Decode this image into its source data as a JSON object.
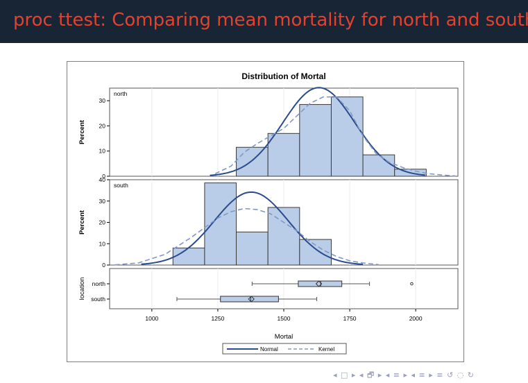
{
  "slide": {
    "title": "proc ttest: Comparing mean mortality for north and south"
  },
  "colors": {
    "title_bar": "#172535",
    "title_text": "#e8402c",
    "bar_fill": "#b9cde8",
    "normal_curve": "#2a4b8d",
    "kernel_curve": "#7f98c8"
  },
  "chart_data": {
    "type": "bar",
    "title": "Distribution of Mortal",
    "xlabel": "Mortal",
    "x_ticks": [
      1000,
      1250,
      1500,
      1750,
      2000
    ],
    "xlim": [
      840,
      2160
    ],
    "panels": [
      {
        "label": "north",
        "ylabel": "Percent",
        "ylim": [
          0,
          35
        ],
        "y_ticks": [
          0,
          10,
          20,
          30
        ],
        "bins": [
          {
            "x0": 1320,
            "x1": 1440,
            "value": 11.5
          },
          {
            "x0": 1440,
            "x1": 1560,
            "value": 17
          },
          {
            "x0": 1560,
            "x1": 1680,
            "value": 28.5
          },
          {
            "x0": 1680,
            "x1": 1800,
            "value": 31.5
          },
          {
            "x0": 1800,
            "x1": 1920,
            "value": 8.5
          },
          {
            "x0": 1920,
            "x1": 2040,
            "value": 2.8
          }
        ],
        "normal": {
          "mean": 1633,
          "sd": 136,
          "range": [
            1220,
            2040
          ]
        },
        "kernel": [
          [
            1240,
            1
          ],
          [
            1300,
            4
          ],
          [
            1350,
            9.5
          ],
          [
            1400,
            13
          ],
          [
            1450,
            16
          ],
          [
            1500,
            19
          ],
          [
            1550,
            24
          ],
          [
            1600,
            29
          ],
          [
            1650,
            31.5
          ],
          [
            1700,
            31.5
          ],
          [
            1750,
            26
          ],
          [
            1800,
            16
          ],
          [
            1850,
            9
          ],
          [
            1900,
            5.5
          ],
          [
            1950,
            3.5
          ],
          [
            2000,
            2
          ],
          [
            2050,
            1
          ],
          [
            2100,
            0.5
          ],
          [
            2150,
            0.1
          ]
        ]
      },
      {
        "label": "south",
        "ylabel": "Percent",
        "ylim": [
          0,
          40
        ],
        "y_ticks": [
          0,
          10,
          20,
          30,
          40
        ],
        "bins": [
          {
            "x0": 1080,
            "x1": 1200,
            "value": 8
          },
          {
            "x0": 1200,
            "x1": 1320,
            "value": 38.5
          },
          {
            "x0": 1320,
            "x1": 1440,
            "value": 15.5
          },
          {
            "x0": 1440,
            "x1": 1560,
            "value": 27
          },
          {
            "x0": 1560,
            "x1": 1680,
            "value": 12
          }
        ],
        "normal": {
          "mean": 1377,
          "sd": 140,
          "range": [
            960,
            1800
          ]
        },
        "kernel": [
          [
            860,
            0.1
          ],
          [
            950,
            1
          ],
          [
            1050,
            5
          ],
          [
            1150,
            13
          ],
          [
            1250,
            22
          ],
          [
            1300,
            25
          ],
          [
            1350,
            26.5
          ],
          [
            1400,
            26
          ],
          [
            1450,
            24
          ],
          [
            1500,
            20
          ],
          [
            1550,
            16
          ],
          [
            1600,
            11
          ],
          [
            1650,
            7
          ],
          [
            1700,
            4
          ],
          [
            1750,
            2
          ],
          [
            1800,
            1
          ],
          [
            1860,
            0.2
          ]
        ]
      }
    ],
    "boxplot": {
      "ylabel": "location",
      "groups": [
        {
          "label": "north",
          "whisker_low": 1380,
          "q1": 1555,
          "median": 1640,
          "mean": 1633,
          "q3": 1720,
          "whisker_high": 1825,
          "outliers": [
            1985
          ]
        },
        {
          "label": "south",
          "whisker_low": 1095,
          "q1": 1260,
          "median": 1375,
          "mean": 1377,
          "q3": 1480,
          "whisker_high": 1625,
          "outliers": []
        }
      ]
    },
    "legend": {
      "position": "bottom",
      "entries": [
        {
          "name": "Normal",
          "style": "solid"
        },
        {
          "name": "Kernel",
          "style": "dashed"
        }
      ]
    }
  },
  "nav": {
    "symbols": "◂ □ ▸ ◂ 🗗 ▸ ◂ ≡ ▸ ◂ ≡ ▸ ≡ ↺ ◌ ↻"
  }
}
